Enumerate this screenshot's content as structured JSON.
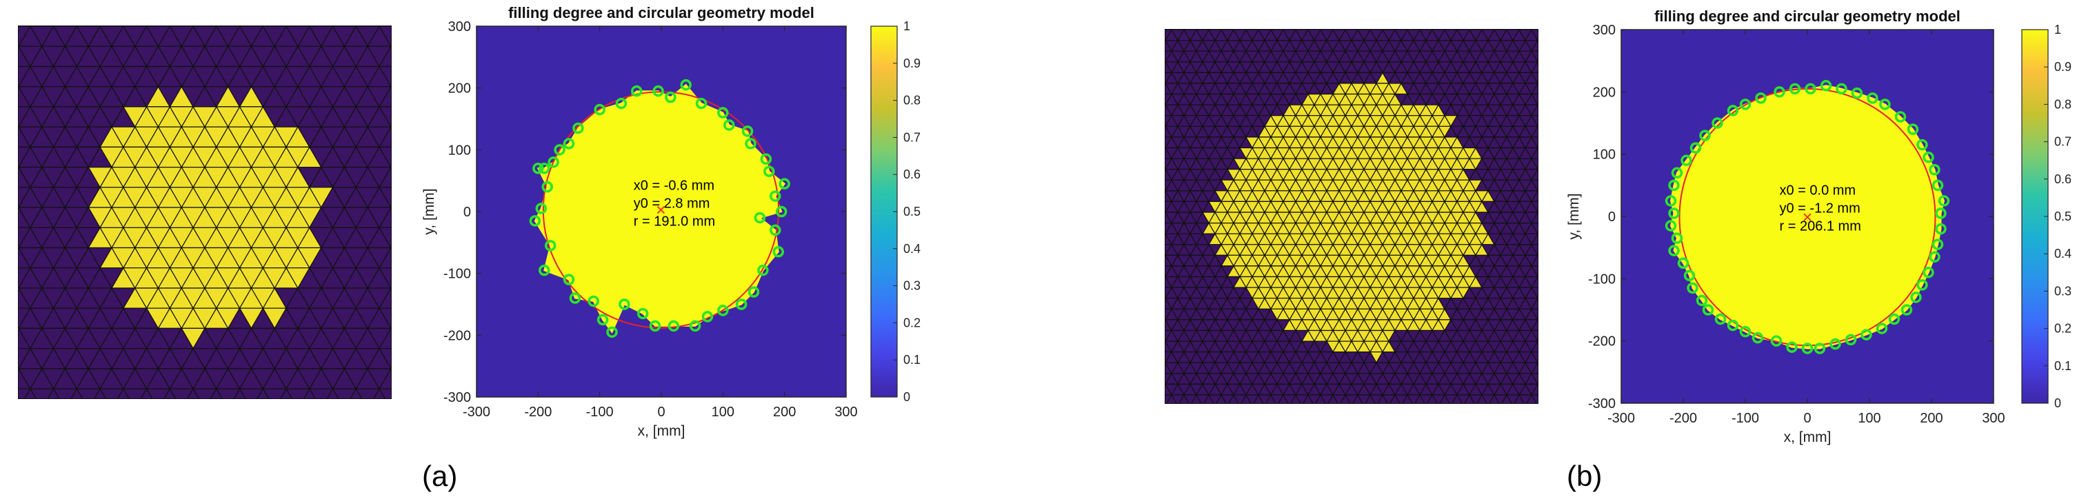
{
  "chart_data": [
    {
      "id": "a",
      "type": "heatmap",
      "caption": "(a)",
      "title": "filling degree and circular geometry model",
      "xlabel": "x, [mm]",
      "ylabel": "y, [mm]",
      "xlim": [
        -300,
        300
      ],
      "ylim": [
        -300,
        300
      ],
      "ticks": [
        -300,
        -200,
        -100,
        0,
        100,
        200,
        300
      ],
      "tick_labels": [
        "-300",
        "-200",
        "-100",
        "0",
        "100",
        "200",
        "300"
      ],
      "colorbar": {
        "min": 0,
        "max": 1,
        "ticks": [
          0,
          0.1,
          0.2,
          0.3,
          0.4,
          0.5,
          0.6,
          0.7,
          0.8,
          0.9,
          1
        ],
        "tick_labels": [
          "0",
          "0.1",
          "0.2",
          "0.3",
          "0.4",
          "0.5",
          "0.6",
          "0.7",
          "0.8",
          "0.9",
          "1"
        ]
      },
      "annotation_lines": [
        "x0 = -0.6 mm",
        "y0 = 2.8 mm",
        "r = 191.0 mm"
      ],
      "fit_circle": {
        "x0": -0.6,
        "y0": 2.8,
        "r": 191.0
      },
      "boundary_points": [
        [
          -200,
          70
        ],
        [
          -185,
          40
        ],
        [
          -195,
          5
        ],
        [
          -205,
          -15
        ],
        [
          -180,
          -55
        ],
        [
          -190,
          -95
        ],
        [
          -150,
          -110
        ],
        [
          -140,
          -140
        ],
        [
          -110,
          -145
        ],
        [
          -95,
          -175
        ],
        [
          -80,
          -195
        ],
        [
          -60,
          -150
        ],
        [
          -30,
          -165
        ],
        [
          -10,
          -185
        ],
        [
          20,
          -185
        ],
        [
          55,
          -185
        ],
        [
          75,
          -170
        ],
        [
          100,
          -160
        ],
        [
          130,
          -150
        ],
        [
          150,
          -130
        ],
        [
          165,
          -95
        ],
        [
          190,
          -65
        ],
        [
          185,
          -30
        ],
        [
          160,
          -10
        ],
        [
          195,
          0
        ],
        [
          185,
          25
        ],
        [
          200,
          45
        ],
        [
          175,
          65
        ],
        [
          170,
          85
        ],
        [
          145,
          110
        ],
        [
          140,
          130
        ],
        [
          110,
          140
        ],
        [
          100,
          160
        ],
        [
          65,
          175
        ],
        [
          40,
          205
        ],
        [
          15,
          185
        ],
        [
          -5,
          195
        ],
        [
          -40,
          195
        ],
        [
          -65,
          175
        ],
        [
          -100,
          165
        ],
        [
          -135,
          135
        ],
        [
          -150,
          110
        ],
        [
          -165,
          100
        ],
        [
          -175,
          80
        ],
        [
          -190,
          70
        ]
      ],
      "mesh_image": {
        "nodes_side": 16,
        "fill_radius": 0.63,
        "colors": {
          "empty": "#3b1463",
          "filled": "#f0e02a",
          "edge": "#111111"
        }
      }
    },
    {
      "id": "b",
      "type": "heatmap",
      "caption": "(b)",
      "title": "filling degree and circular geometry model",
      "xlabel": "x, [mm]",
      "ylabel": "y, [mm]",
      "xlim": [
        -300,
        300
      ],
      "ylim": [
        -300,
        300
      ],
      "ticks": [
        -300,
        -200,
        -100,
        0,
        100,
        200,
        300
      ],
      "tick_labels": [
        "-300",
        "-200",
        "-100",
        "0",
        "100",
        "200",
        "300"
      ],
      "colorbar": {
        "min": 0,
        "max": 1,
        "ticks": [
          0,
          0.1,
          0.2,
          0.3,
          0.4,
          0.5,
          0.6,
          0.7,
          0.8,
          0.9,
          1
        ],
        "tick_labels": [
          "0",
          "0.1",
          "0.2",
          "0.3",
          "0.4",
          "0.5",
          "0.6",
          "0.7",
          "0.8",
          "0.9",
          "1"
        ]
      },
      "annotation_lines": [
        "x0 = 0.0 mm",
        "y0 = -1.2 mm",
        "r = 206.1 mm"
      ],
      "fit_circle": {
        "x0": 0.0,
        "y0": -1.2,
        "r": 206.1
      },
      "boundary_points": [
        [
          -210,
          70
        ],
        [
          -215,
          50
        ],
        [
          -220,
          25
        ],
        [
          -215,
          5
        ],
        [
          -220,
          -15
        ],
        [
          -210,
          -35
        ],
        [
          -215,
          -55
        ],
        [
          -200,
          -75
        ],
        [
          -190,
          -95
        ],
        [
          -185,
          -115
        ],
        [
          -170,
          -135
        ],
        [
          -160,
          -150
        ],
        [
          -140,
          -165
        ],
        [
          -120,
          -175
        ],
        [
          -100,
          -185
        ],
        [
          -80,
          -195
        ],
        [
          -50,
          -200
        ],
        [
          -25,
          -210
        ],
        [
          0,
          -212
        ],
        [
          20,
          -212
        ],
        [
          45,
          -205
        ],
        [
          70,
          -198
        ],
        [
          95,
          -190
        ],
        [
          120,
          -180
        ],
        [
          140,
          -165
        ],
        [
          160,
          -150
        ],
        [
          175,
          -130
        ],
        [
          185,
          -110
        ],
        [
          195,
          -90
        ],
        [
          205,
          -65
        ],
        [
          210,
          -45
        ],
        [
          215,
          -20
        ],
        [
          215,
          5
        ],
        [
          220,
          25
        ],
        [
          210,
          50
        ],
        [
          205,
          75
        ],
        [
          195,
          95
        ],
        [
          185,
          115
        ],
        [
          170,
          140
        ],
        [
          150,
          160
        ],
        [
          125,
          180
        ],
        [
          105,
          190
        ],
        [
          80,
          198
        ],
        [
          55,
          205
        ],
        [
          30,
          210
        ],
        [
          5,
          205
        ],
        [
          -20,
          205
        ],
        [
          -45,
          200
        ],
        [
          -75,
          190
        ],
        [
          -100,
          180
        ],
        [
          -120,
          170
        ],
        [
          -145,
          150
        ],
        [
          -165,
          130
        ],
        [
          -180,
          110
        ],
        [
          -195,
          90
        ]
      ],
      "mesh_image": {
        "nodes_side": 30,
        "fill_radius": 0.72,
        "colors": {
          "empty": "#3b1463",
          "filled": "#f0e02a",
          "edge": "#111111"
        }
      }
    }
  ],
  "colors": {
    "background": "#3e26a8",
    "fill": "#f9fb15",
    "circle": "#e8202a",
    "points": "#28e62a",
    "center_marker": "#f03a1e"
  },
  "colormap": [
    "#3e26a8",
    "#4742e6",
    "#3b6efb",
    "#2a93ea",
    "#1bb0d2",
    "#2ec5a8",
    "#80cc6d",
    "#c9c22f",
    "#fcc13c",
    "#f9fb15"
  ]
}
